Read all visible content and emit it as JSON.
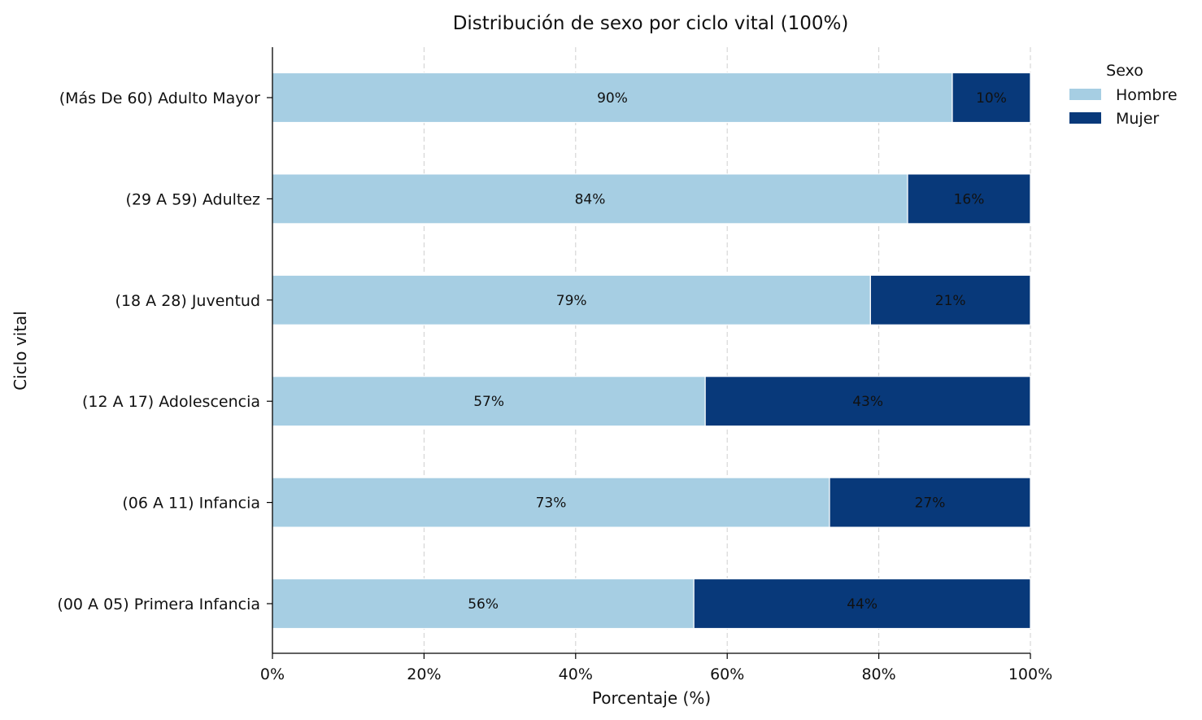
{
  "chart_data": {
    "type": "bar",
    "orientation": "horizontal",
    "stacked": true,
    "title": "Distribución de sexo por ciclo vital (100%)",
    "xlabel": "Porcentaje (%)",
    "ylabel": "Ciclo vital",
    "xlim": [
      0,
      100
    ],
    "xticks": [
      0,
      20,
      40,
      60,
      80,
      100
    ],
    "xtick_labels": [
      "0%",
      "20%",
      "40%",
      "60%",
      "80%",
      "100%"
    ],
    "grid": "vertical dashed",
    "categories": [
      "(Más De 60) Adulto Mayor",
      "(29 A 59) Adultez",
      "(18 A 28) Juventud",
      "(12 A 17) Adolescencia",
      "(06 A 11) Infancia",
      "(00 A 05) Primera Infancia"
    ],
    "series": [
      {
        "name": "Hombre",
        "color": "#a6cee3",
        "values": [
          89.7,
          83.8,
          78.9,
          57.1,
          73.5,
          55.6
        ],
        "labels": [
          "90%",
          "84%",
          "79%",
          "57%",
          "73%",
          "56%"
        ]
      },
      {
        "name": "Mujer",
        "color": "#08397a",
        "values": [
          10.3,
          16.2,
          21.1,
          42.9,
          26.5,
          44.4
        ],
        "labels": [
          "10%",
          "16%",
          "21%",
          "43%",
          "27%",
          "44%"
        ]
      }
    ],
    "legend": {
      "title": "Sexo",
      "placement": "outside top-right"
    }
  }
}
